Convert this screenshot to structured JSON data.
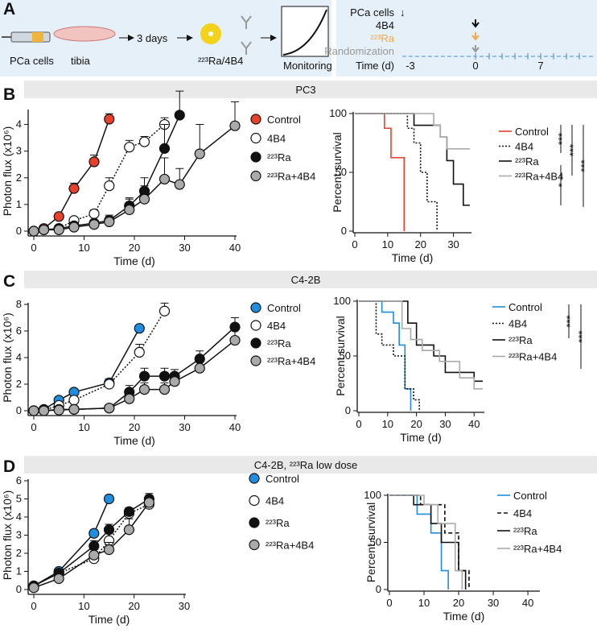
{
  "panel_labels": [
    "A",
    "B",
    "C",
    "D"
  ],
  "section_titles": [
    "PC3",
    "C4-2B",
    "C4-2B, ²²³Ra  low dose"
  ],
  "schematic": {
    "cells": "PCa cells",
    "tibia": "tibia",
    "days": "3 days",
    "treatment": "²²³Ra/4B4",
    "monitoring": "Monitoring",
    "timeline": {
      "cells": "PCa cells",
      "antibody": "4B4",
      "radium": "²²³Ra",
      "randomization": "Randomization",
      "axis": "Time (d)",
      "ticks": [
        "-3",
        "0",
        "7"
      ]
    }
  },
  "chart_data": [
    {
      "type": "line",
      "xlabel": "Time (d)",
      "ylabel": "Photon flux (x10⁶)",
      "xlim": [
        0,
        40
      ],
      "xticks": [
        0,
        10,
        20,
        30,
        40
      ],
      "ylim": [
        0,
        4.5
      ],
      "yticks": [
        0,
        1,
        2,
        3,
        4
      ],
      "series": [
        {
          "name": "Control",
          "color": "#e8402a",
          "line_style": "solid",
          "x": [
            0,
            2,
            5,
            8,
            12,
            15
          ],
          "values": [
            0,
            0.1,
            0.55,
            1.6,
            2.6,
            4.2
          ],
          "errors": [
            0,
            0.05,
            0.1,
            0.2,
            0.25,
            0.2
          ]
        },
        {
          "name": "4B4",
          "color": "#ffffff",
          "line_style": "dotted",
          "x": [
            0,
            2,
            5,
            8,
            12,
            15,
            19,
            22,
            26
          ],
          "values": [
            0,
            0.05,
            0.1,
            0.4,
            0.65,
            1.7,
            3.15,
            3.35,
            4.0
          ],
          "errors": [
            0,
            0.02,
            0.05,
            0.1,
            0.15,
            0.3,
            0.25,
            0.2,
            0.25
          ]
        },
        {
          "name": "²²³Ra",
          "color": "#111111",
          "line_style": "solid",
          "x": [
            0,
            2,
            5,
            8,
            12,
            15,
            19,
            22,
            26,
            29
          ],
          "values": [
            0,
            0.05,
            0.1,
            0.2,
            0.3,
            0.4,
            0.95,
            1.5,
            3.1,
            4.35
          ],
          "errors": [
            0,
            0.02,
            0.05,
            0.1,
            0.1,
            0.2,
            0.3,
            0.5,
            0.9,
            0.9
          ]
        },
        {
          "name": "²²³Ra+4B4",
          "color": "#aaaaaa",
          "line_style": "solid",
          "x": [
            0,
            2,
            5,
            8,
            12,
            15,
            19,
            22,
            26,
            29,
            33,
            40
          ],
          "values": [
            0,
            0.05,
            0.05,
            0.15,
            0.25,
            0.35,
            0.8,
            1.2,
            1.95,
            1.75,
            2.9,
            3.95
          ],
          "errors": [
            0,
            0.02,
            0.05,
            0.1,
            0.1,
            0.2,
            0.4,
            0.5,
            0.8,
            0.6,
            1.1,
            0.9
          ]
        }
      ]
    },
    {
      "type": "step",
      "xlabel": "Time (d)",
      "ylabel": "Percent survival",
      "xlim": [
        0,
        35
      ],
      "xticks": [
        0,
        10,
        20,
        30
      ],
      "ylim": [
        0,
        100
      ],
      "yticks": [
        0,
        50,
        100
      ],
      "annotations": [
        "***",
        "***",
        "***",
        "*"
      ],
      "series": [
        {
          "name": "Control",
          "color": "#e8402a",
          "line_style": "solid",
          "x": [
            0,
            9,
            11,
            15
          ],
          "values": [
            100,
            87.5,
            62.5,
            0
          ]
        },
        {
          "name": "4B4",
          "color": "#111111",
          "line_style": "dotted",
          "x": [
            0,
            16,
            18,
            20,
            22,
            25
          ],
          "values": [
            100,
            87.5,
            75,
            50,
            25,
            0
          ]
        },
        {
          "name": "²²³Ra",
          "color": "#111111",
          "line_style": "solid",
          "x": [
            0,
            18,
            26,
            28,
            30,
            33,
            35
          ],
          "values": [
            100,
            90,
            80,
            60,
            40,
            22,
            22
          ]
        },
        {
          "name": "²²³Ra+4B4",
          "color": "#aaaaaa",
          "line_style": "solid",
          "x": [
            0,
            24,
            26,
            28,
            35
          ],
          "values": [
            100,
            90,
            80,
            70,
            70
          ]
        }
      ]
    },
    {
      "type": "line",
      "xlabel": "Time (d)",
      "ylabel": "Photon flux (x10⁶)",
      "xlim": [
        0,
        40
      ],
      "xticks": [
        0,
        10,
        20,
        30,
        40
      ],
      "ylim": [
        0,
        8
      ],
      "yticks": [
        0,
        2,
        4,
        6,
        8
      ],
      "series": [
        {
          "name": "Control",
          "color": "#1f8ee0",
          "line_style": "solid",
          "x": [
            0,
            2,
            5,
            8,
            15,
            21
          ],
          "values": [
            0,
            0.1,
            0.8,
            1.4,
            2.1,
            6.2
          ],
          "errors": [
            0,
            0.05,
            0.2,
            0.2,
            0.3,
            0.2
          ]
        },
        {
          "name": "4B4",
          "color": "#ffffff",
          "line_style": "dotted",
          "x": [
            0,
            2,
            5,
            8,
            15,
            21,
            26
          ],
          "values": [
            0,
            0.05,
            0.4,
            0.8,
            2.0,
            4.4,
            7.5
          ],
          "errors": [
            0,
            0.05,
            0.1,
            0.2,
            0.3,
            0.6,
            0.6
          ]
        },
        {
          "name": "²²³Ra",
          "color": "#111111",
          "line_style": "solid",
          "x": [
            0,
            2,
            5,
            8,
            15,
            19,
            22,
            26,
            28,
            33,
            40
          ],
          "values": [
            0,
            0,
            0.1,
            0.1,
            0.2,
            1.4,
            2.6,
            2.6,
            2.6,
            3.9,
            6.3
          ],
          "errors": [
            0,
            0,
            0.05,
            0.05,
            0.1,
            0.5,
            0.6,
            0.6,
            0.5,
            0.6,
            0.7
          ]
        },
        {
          "name": "²²³Ra+4B4",
          "color": "#aaaaaa",
          "line_style": "solid",
          "x": [
            0,
            2,
            5,
            8,
            15,
            19,
            22,
            26,
            28,
            33,
            40
          ],
          "values": [
            0,
            0,
            0.05,
            0.1,
            0.2,
            0.9,
            1.6,
            1.6,
            2.2,
            3.2,
            5.3
          ],
          "errors": [
            0,
            0,
            0.05,
            0.05,
            0.1,
            0.4,
            0.5,
            0.5,
            0.5,
            0.6,
            1.0
          ]
        }
      ]
    },
    {
      "type": "step",
      "xlabel": "Time (d)",
      "ylabel": "Percent survival",
      "xlim": [
        0,
        43
      ],
      "xticks": [
        0,
        10,
        20,
        30,
        40
      ],
      "ylim": [
        0,
        100
      ],
      "yticks": [
        0,
        50,
        100
      ],
      "annotations": [
        "***",
        "***"
      ],
      "series": [
        {
          "name": "Control",
          "color": "#1f8ee0",
          "line_style": "solid",
          "x": [
            0,
            8,
            12,
            14,
            16,
            18
          ],
          "values": [
            100,
            90,
            80,
            60,
            20,
            0
          ]
        },
        {
          "name": "4B4",
          "color": "#111111",
          "line_style": "dotted",
          "x": [
            0,
            6,
            8,
            12,
            16,
            19,
            21
          ],
          "values": [
            100,
            70,
            60,
            50,
            20,
            10,
            0
          ]
        },
        {
          "name": "²²³Ra",
          "color": "#111111",
          "line_style": "solid",
          "x": [
            0,
            17,
            20,
            26,
            30,
            40,
            43
          ],
          "values": [
            100,
            80,
            60,
            50,
            35,
            27,
            27
          ]
        },
        {
          "name": "²²³Ra+4B4",
          "color": "#aaaaaa",
          "line_style": "solid",
          "x": [
            0,
            15,
            18,
            22,
            28,
            35,
            40,
            43
          ],
          "values": [
            100,
            75,
            65,
            55,
            45,
            30,
            20,
            20
          ]
        }
      ]
    },
    {
      "type": "line",
      "xlabel": "Time (d)",
      "ylabel": "Photon flux (x10⁶)",
      "xlim": [
        0,
        30
      ],
      "xticks": [
        0,
        10,
        20,
        30
      ],
      "ylim": [
        0,
        6
      ],
      "yticks": [
        0,
        1,
        2,
        3,
        4,
        5,
        6
      ],
      "series": [
        {
          "name": "Control",
          "color": "#1f8ee0",
          "line_style": "solid",
          "x": [
            0,
            5,
            12,
            15
          ],
          "values": [
            0.2,
            1.0,
            3.1,
            5.0
          ],
          "errors": [
            0.05,
            0.1,
            0.2,
            0.2
          ]
        },
        {
          "name": "4B4",
          "color": "#ffffff",
          "line_style": "dotted",
          "x": [
            0,
            5,
            12,
            15,
            19,
            23
          ],
          "values": [
            0.2,
            0.9,
            1.7,
            2.7,
            4.2,
            4.7
          ],
          "errors": [
            0.05,
            0.1,
            0.4,
            0.4,
            0.3,
            0.4
          ]
        },
        {
          "name": "²²³Ra",
          "color": "#111111",
          "line_style": "solid",
          "x": [
            0,
            5,
            12,
            15,
            19,
            23
          ],
          "values": [
            0.2,
            0.9,
            2.4,
            3.3,
            4.3,
            5.0
          ],
          "errors": [
            0.05,
            0.1,
            0.3,
            0.3,
            0.2,
            0.2
          ]
        },
        {
          "name": "²²³Ra+4B4",
          "color": "#aaaaaa",
          "line_style": "solid",
          "x": [
            0,
            5,
            12,
            15,
            19,
            23
          ],
          "values": [
            0.1,
            0.6,
            1.9,
            2.2,
            3.3,
            4.8
          ],
          "errors": [
            0.05,
            0.1,
            0.3,
            0.4,
            0.6,
            0.5
          ]
        }
      ]
    },
    {
      "type": "step",
      "xlabel": "Time (d)",
      "ylabel": "Percent survival",
      "xlim": [
        0,
        43
      ],
      "xticks": [
        0,
        10,
        20,
        30,
        40
      ],
      "ylim": [
        0,
        100
      ],
      "yticks": [
        0,
        50,
        100
      ],
      "series": [
        {
          "name": "Control",
          "color": "#1f8ee0",
          "line_style": "solid",
          "x": [
            0,
            8,
            12,
            15,
            17
          ],
          "values": [
            100,
            80,
            60,
            20,
            0
          ]
        },
        {
          "name": "4B4",
          "color": "#111111",
          "line_style": "dashed",
          "x": [
            0,
            9,
            16,
            20,
            23
          ],
          "values": [
            100,
            90,
            60,
            20,
            0
          ]
        },
        {
          "name": "²²³Ra",
          "color": "#111111",
          "line_style": "solid",
          "x": [
            0,
            7,
            12,
            15,
            20,
            22
          ],
          "values": [
            100,
            90,
            70,
            50,
            20,
            0
          ]
        },
        {
          "name": "²²³Ra+4B4",
          "color": "#aaaaaa",
          "line_style": "solid",
          "x": [
            0,
            10,
            14,
            19,
            21
          ],
          "values": [
            100,
            90,
            70,
            20,
            0
          ]
        }
      ]
    }
  ]
}
